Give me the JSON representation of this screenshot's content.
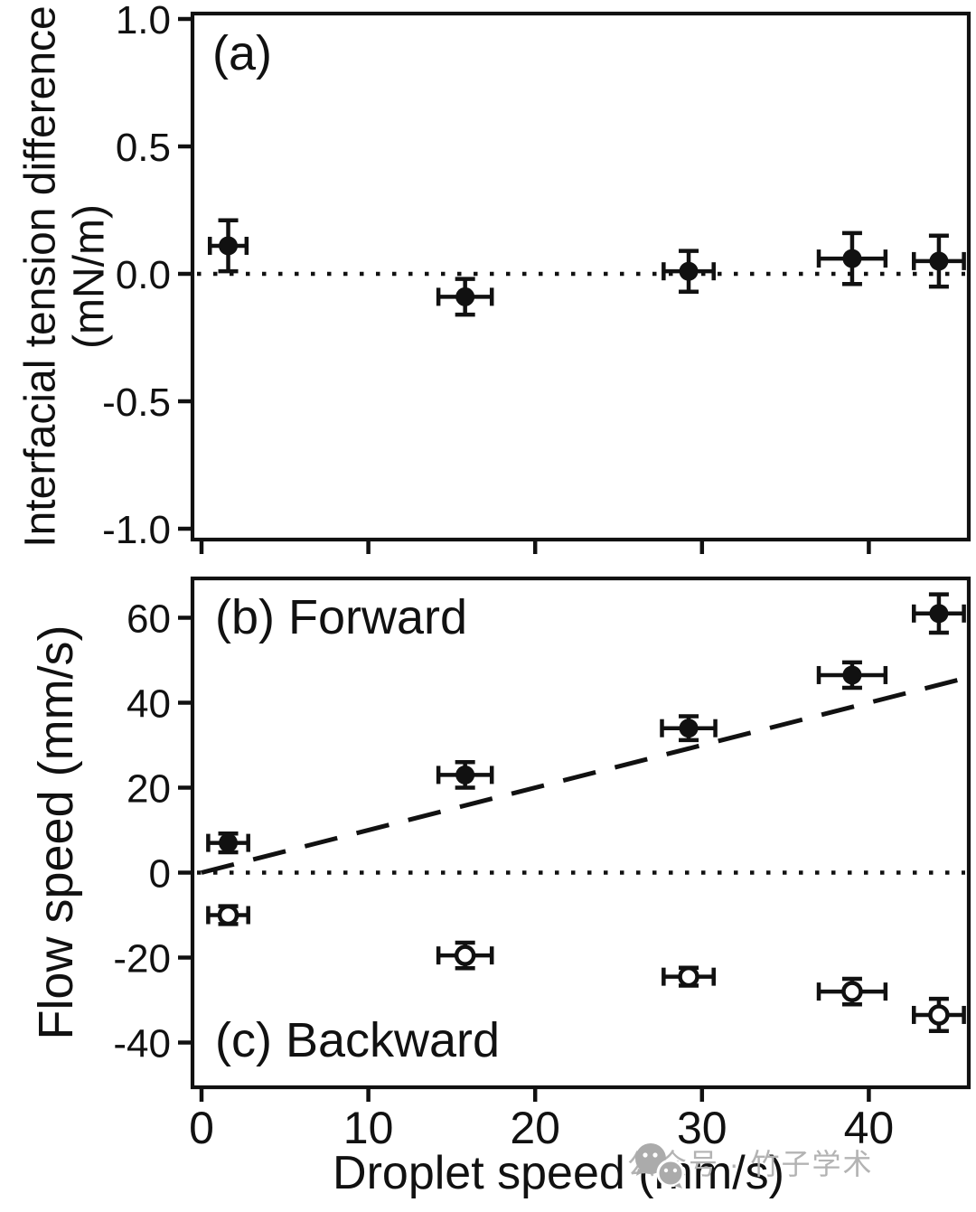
{
  "figure": {
    "colors": {
      "foreground": "#111111",
      "background": "#ffffff",
      "watermark_gray": "#b3b3b3"
    },
    "watermark": {
      "icon": "wechat-icon",
      "text": "公众号 · 竹子学术"
    }
  },
  "chart_data": [
    {
      "id": "a",
      "type": "scatter",
      "panel_label": "(a)",
      "ylabel": "Interfacial tension difference (mN/m)",
      "ylabel_lines": [
        "Interfacial tension difference",
        "(mN/m)"
      ],
      "xlabel": "",
      "xlim": [
        -0.5,
        46
      ],
      "ylim": [
        -1.04,
        1.02
      ],
      "yticks": [
        1.0,
        0.5,
        0.0,
        -0.5,
        -1.0
      ],
      "ytick_labels": [
        "1.0",
        "0.5",
        "0.0",
        "-0.5",
        "-1.0"
      ],
      "xticks": [
        0,
        10,
        20,
        30,
        40
      ],
      "show_xtick_labels": false,
      "grid": false,
      "reference_lines": [
        {
          "style": "dotted",
          "kind": "horizontal",
          "y": 0,
          "meaning": "zero line"
        }
      ],
      "series": [
        {
          "name": "interfacial-tension-difference",
          "marker": "filled-circle",
          "x": [
            1.6,
            15.8,
            29.2,
            39.0,
            44.2
          ],
          "y": [
            0.11,
            -0.09,
            0.01,
            0.06,
            0.05
          ],
          "x_err": [
            1.1,
            1.6,
            1.5,
            2.0,
            1.5
          ],
          "y_err": [
            0.1,
            0.07,
            0.08,
            0.1,
            0.1
          ]
        }
      ]
    },
    {
      "id": "bc",
      "type": "scatter",
      "panel_labels": [
        "(b) Forward",
        "(c) Backward"
      ],
      "ylabel": "Flow speed (mm/s)",
      "xlabel": "Droplet speed (mm/s)",
      "xlim": [
        -0.5,
        46
      ],
      "ylim": [
        -50.5,
        69.5
      ],
      "yticks": [
        60,
        40,
        20,
        0,
        -20,
        -40
      ],
      "ytick_labels": [
        "60",
        "40",
        "20",
        "0",
        "-20",
        "-40"
      ],
      "xticks": [
        0,
        10,
        20,
        30,
        40
      ],
      "xtick_labels": [
        "0",
        "10",
        "20",
        "30",
        "40"
      ],
      "show_xtick_labels": true,
      "grid": false,
      "reference_lines": [
        {
          "style": "dotted",
          "kind": "horizontal",
          "y": 0,
          "meaning": "zero line"
        },
        {
          "style": "dashed",
          "kind": "segment",
          "from": [
            0,
            0
          ],
          "to": [
            46,
            46
          ],
          "meaning": "y = x guide"
        }
      ],
      "series": [
        {
          "name": "forward-flow-speed",
          "marker": "filled-circle",
          "x": [
            1.6,
            15.8,
            29.2,
            39.0,
            44.2
          ],
          "y": [
            7,
            23,
            34,
            46.5,
            61
          ],
          "x_err": [
            1.2,
            1.6,
            1.6,
            2.0,
            1.5
          ],
          "y_err": [
            2.2,
            3,
            2.8,
            3,
            4.5
          ]
        },
        {
          "name": "backward-flow-speed",
          "marker": "open-circle",
          "x": [
            1.6,
            15.8,
            29.2,
            39.0,
            44.2
          ],
          "y": [
            -10,
            -19.5,
            -24.5,
            -28,
            -33.5
          ],
          "x_err": [
            1.2,
            1.6,
            1.5,
            2.0,
            1.5
          ],
          "y_err": [
            2.1,
            3,
            2.1,
            3,
            3.8
          ]
        }
      ]
    }
  ]
}
